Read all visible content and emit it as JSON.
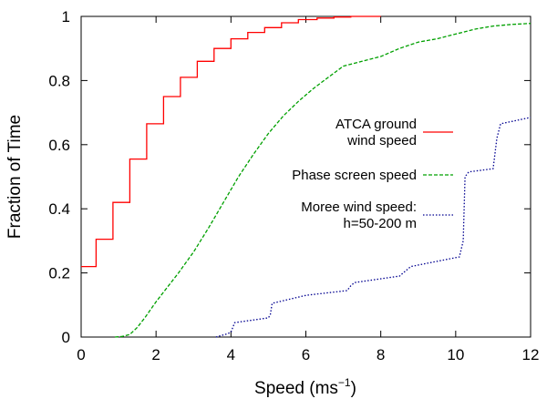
{
  "chart_data": {
    "type": "line",
    "xlabel": "Speed (ms",
    "xlabel_sup": "−1",
    "xlabel_close": ")",
    "ylabel": "Fraction of Time",
    "xlim": [
      0,
      12
    ],
    "ylim": [
      0,
      1
    ],
    "x_ticks": [
      "0",
      "2",
      "4",
      "6",
      "8",
      "10",
      "12"
    ],
    "y_ticks": [
      "0",
      "0.2",
      "0.4",
      "0.6",
      "0.8",
      "1"
    ],
    "grid": false,
    "legend_position": "right",
    "series": [
      {
        "name": "ATCA ground wind speed",
        "name_lines": [
          "ATCA ground",
          "wind speed"
        ],
        "style": "solid-step",
        "color": "#ff0000",
        "x": [
          0,
          0.4,
          0.4,
          0.85,
          0.85,
          1.3,
          1.3,
          1.75,
          1.75,
          2.2,
          2.2,
          2.65,
          2.65,
          3.1,
          3.1,
          3.55,
          3.55,
          4.0,
          4.0,
          4.45,
          4.45,
          4.9,
          4.9,
          5.35,
          5.35,
          5.8,
          5.8,
          6.3,
          6.3,
          6.75,
          6.75,
          7.2,
          7.2,
          7.65,
          7.65,
          8.0
        ],
        "y": [
          0.22,
          0.22,
          0.305,
          0.305,
          0.42,
          0.42,
          0.555,
          0.555,
          0.665,
          0.665,
          0.75,
          0.75,
          0.81,
          0.81,
          0.86,
          0.86,
          0.9,
          0.9,
          0.93,
          0.93,
          0.95,
          0.95,
          0.965,
          0.965,
          0.98,
          0.98,
          0.99,
          0.99,
          0.995,
          0.995,
          0.998,
          0.998,
          1.0,
          1.0,
          1.0,
          1.0
        ]
      },
      {
        "name": "Phase screen speed",
        "name_lines": [
          "Phase screen speed"
        ],
        "style": "dashed",
        "color": "#00a000",
        "x": [
          0.9,
          1.1,
          1.3,
          1.5,
          1.7,
          2.0,
          2.3,
          2.6,
          3.0,
          3.4,
          3.8,
          4.2,
          4.6,
          5.0,
          5.4,
          5.8,
          6.2,
          6.6,
          7.0,
          7.5,
          8.0,
          8.5,
          9.0,
          9.5,
          10.0,
          10.5,
          11.0,
          11.5,
          12.0
        ],
        "y": [
          0.0,
          0.002,
          0.008,
          0.03,
          0.06,
          0.11,
          0.155,
          0.2,
          0.265,
          0.34,
          0.42,
          0.5,
          0.57,
          0.635,
          0.69,
          0.735,
          0.775,
          0.81,
          0.845,
          0.86,
          0.875,
          0.9,
          0.92,
          0.93,
          0.945,
          0.96,
          0.97,
          0.975,
          0.978
        ]
      },
      {
        "name": "Moree wind speed: h=50-200 m",
        "name_lines": [
          "Moree wind speed:",
          "h=50-200 m"
        ],
        "style": "dotted-step",
        "color": "#000090",
        "x": [
          3.6,
          3.9,
          4.0,
          4.1,
          5.0,
          5.05,
          5.1,
          6.0,
          7.1,
          7.2,
          7.3,
          8.5,
          8.7,
          8.8,
          10.1,
          10.2,
          10.25,
          10.35,
          11.0,
          11.1,
          11.2,
          12.0
        ],
        "y": [
          0.0,
          0.01,
          0.015,
          0.045,
          0.06,
          0.07,
          0.105,
          0.13,
          0.145,
          0.16,
          0.17,
          0.19,
          0.21,
          0.22,
          0.25,
          0.3,
          0.5,
          0.515,
          0.525,
          0.62,
          0.665,
          0.685
        ]
      }
    ]
  }
}
